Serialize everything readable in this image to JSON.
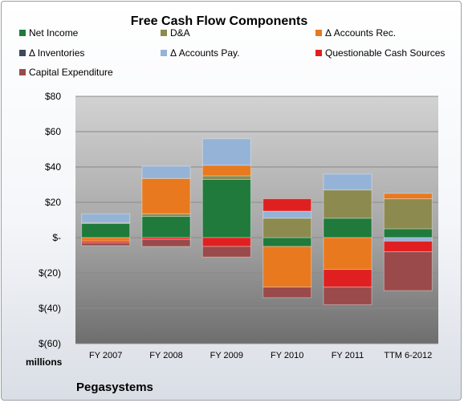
{
  "chart_data": {
    "type": "bar",
    "stacked": true,
    "title": "Free Cash Flow Components",
    "ylabel": "millions",
    "company": "Pegasystems",
    "categories": [
      "FY 2007",
      "FY 2008",
      "FY 2009",
      "FY 2010",
      "FY 2011",
      "TTM 6-2012"
    ],
    "ylim": [
      -60,
      80
    ],
    "yticks": [
      80,
      60,
      40,
      20,
      0,
      -20,
      -40,
      -60
    ],
    "ytick_labels": [
      "$80",
      "$60",
      "$40",
      "$20",
      "$-",
      "$(20)",
      "$(40)",
      "$(60)"
    ],
    "legend_placement": "top",
    "grid": true,
    "series": [
      {
        "name": "Net Income",
        "color": "#1f7a3c",
        "values": [
          8,
          12,
          33,
          -5,
          11,
          5
        ]
      },
      {
        "name": "D&A",
        "color": "#8c8a4e",
        "values": [
          0.5,
          1.5,
          2,
          11,
          16,
          17
        ]
      },
      {
        "name": "Δ Accounts Rec.",
        "color": "#e8791e",
        "values": [
          -2,
          20,
          6,
          -23,
          -18,
          3
        ]
      },
      {
        "name": "Δ Inventories",
        "color": "#3b4a5c",
        "values": [
          0,
          0,
          0,
          0,
          0,
          0
        ]
      },
      {
        "name": "Δ Accounts Pay.",
        "color": "#95b3d7",
        "values": [
          5,
          7,
          15,
          4,
          9,
          -2
        ]
      },
      {
        "name": "Questionable Cash Sources",
        "color": "#e02020",
        "values": [
          -1,
          -1,
          -5,
          7,
          -10,
          -6
        ]
      },
      {
        "name": "Capital Expenditure",
        "color": "#9a4a4a",
        "values": [
          -1.5,
          -4,
          -6,
          -6,
          -10,
          -22
        ]
      }
    ]
  }
}
